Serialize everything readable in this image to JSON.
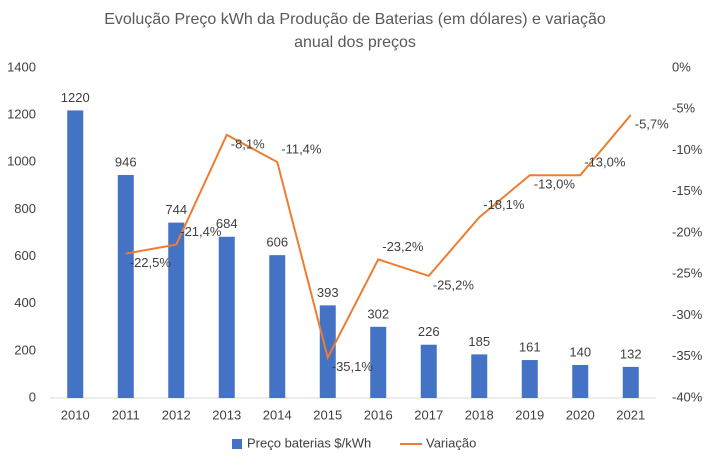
{
  "chart_data": {
    "type": "combo",
    "title": [
      "Evolução Preço kWh da Produção de Baterias (em dólares) e variação",
      "anual dos preços"
    ],
    "categories": [
      "2010",
      "2011",
      "2012",
      "2013",
      "2014",
      "2015",
      "2016",
      "2017",
      "2018",
      "2019",
      "2020",
      "2021"
    ],
    "series": [
      {
        "name": "Preço baterias $/kWh",
        "type": "bar",
        "color": "#4472c4",
        "values": [
          1220,
          946,
          744,
          684,
          606,
          393,
          302,
          226,
          185,
          161,
          140,
          132
        ]
      },
      {
        "name": "Variação",
        "type": "line",
        "axis": "y2",
        "color": "#ed7d31",
        "values": [
          null,
          -22.5,
          -21.4,
          -8.1,
          -11.4,
          -35.1,
          -23.2,
          -25.2,
          -18.1,
          -13.0,
          -13.0,
          -5.7
        ],
        "value_labels": [
          null,
          "-22,5%",
          "-21,4%",
          "-8,1%",
          "-11,4%",
          "-35,1%",
          "-23,2%",
          "-25,2%",
          "-18,1%",
          "-13,0%",
          "-13,0%",
          "-5,7%"
        ]
      }
    ],
    "ylim": [
      0,
      1400
    ],
    "yticks": [
      0,
      200,
      400,
      600,
      800,
      1000,
      1200,
      1400
    ],
    "y2lim": [
      -40,
      0
    ],
    "y2ticks": [
      {
        "value": 0,
        "label": "0%"
      },
      {
        "value": -5,
        "label": "-5%"
      },
      {
        "value": -10,
        "label": "-10%"
      },
      {
        "value": -15,
        "label": "-15%"
      },
      {
        "value": -20,
        "label": "-20%"
      },
      {
        "value": -25,
        "label": "-25%"
      },
      {
        "value": -30,
        "label": "-30%"
      },
      {
        "value": -35,
        "label": "-35%"
      },
      {
        "value": -40,
        "label": "-40%"
      }
    ],
    "legend": "bottom"
  }
}
